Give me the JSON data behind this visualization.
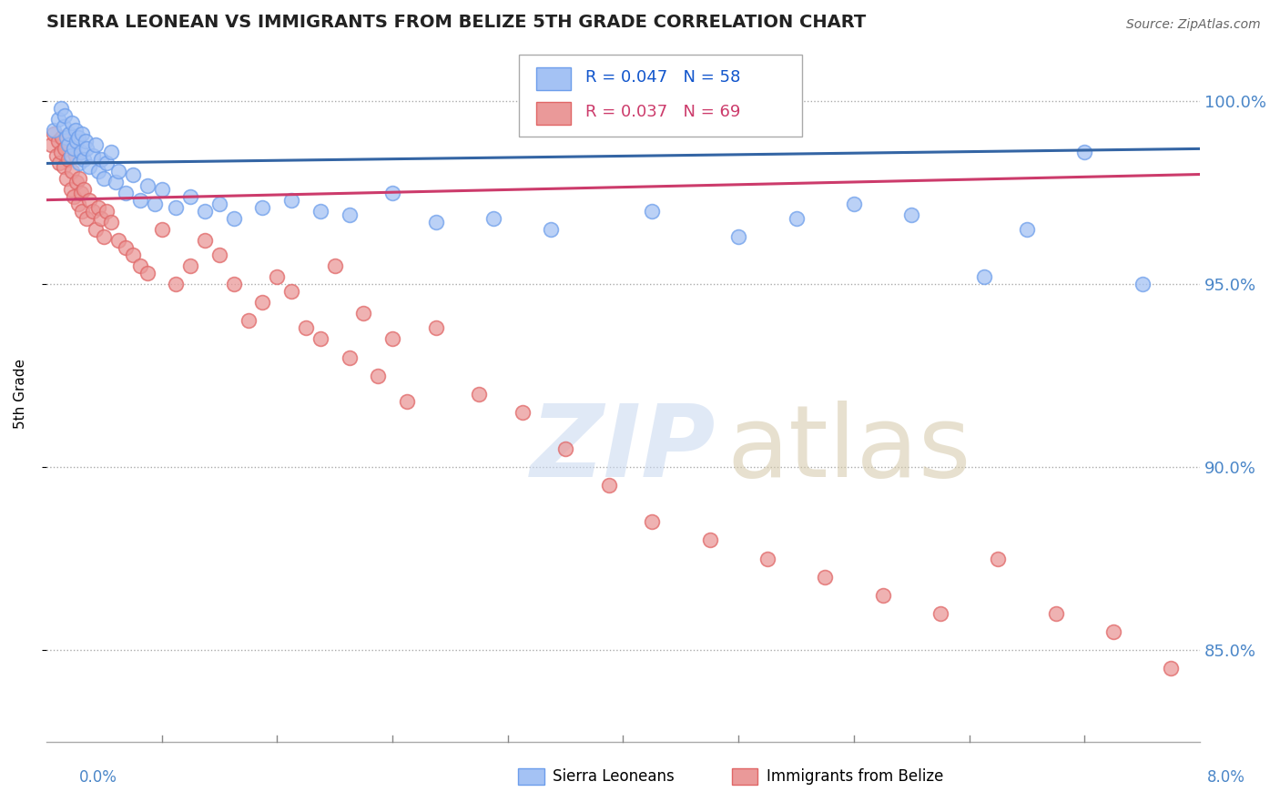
{
  "title": "SIERRA LEONEAN VS IMMIGRANTS FROM BELIZE 5TH GRADE CORRELATION CHART",
  "source": "Source: ZipAtlas.com",
  "ylabel": "5th Grade",
  "xlim": [
    0.0,
    8.0
  ],
  "ylim": [
    82.5,
    101.5
  ],
  "yticks": [
    85.0,
    90.0,
    95.0,
    100.0
  ],
  "legend_blue_r": "R = 0.047",
  "legend_blue_n": "N = 58",
  "legend_pink_r": "R = 0.037",
  "legend_pink_n": "N = 69",
  "blue_color": "#a4c2f4",
  "blue_edge_color": "#6d9eeb",
  "pink_color": "#ea9999",
  "pink_edge_color": "#e06666",
  "blue_line_color": "#3465a4",
  "pink_line_color": "#cc3b6b",
  "blue_scatter_x": [
    0.05,
    0.08,
    0.1,
    0.12,
    0.13,
    0.14,
    0.15,
    0.16,
    0.17,
    0.18,
    0.19,
    0.2,
    0.21,
    0.22,
    0.23,
    0.24,
    0.25,
    0.26,
    0.27,
    0.28,
    0.3,
    0.32,
    0.34,
    0.36,
    0.38,
    0.4,
    0.42,
    0.45,
    0.48,
    0.5,
    0.55,
    0.6,
    0.65,
    0.7,
    0.75,
    0.8,
    0.9,
    1.0,
    1.1,
    1.2,
    1.3,
    1.5,
    1.7,
    1.9,
    2.1,
    2.4,
    2.7,
    3.1,
    3.5,
    4.2,
    4.8,
    5.2,
    5.6,
    6.0,
    6.5,
    6.8,
    7.2,
    7.6
  ],
  "blue_scatter_y": [
    99.2,
    99.5,
    99.8,
    99.3,
    99.6,
    99.0,
    98.8,
    99.1,
    98.5,
    99.4,
    98.7,
    99.2,
    98.9,
    99.0,
    98.3,
    98.6,
    99.1,
    98.4,
    98.9,
    98.7,
    98.2,
    98.5,
    98.8,
    98.1,
    98.4,
    97.9,
    98.3,
    98.6,
    97.8,
    98.1,
    97.5,
    98.0,
    97.3,
    97.7,
    97.2,
    97.6,
    97.1,
    97.4,
    97.0,
    97.2,
    96.8,
    97.1,
    97.3,
    97.0,
    96.9,
    97.5,
    96.7,
    96.8,
    96.5,
    97.0,
    96.3,
    96.8,
    97.2,
    96.9,
    95.2,
    96.5,
    98.6,
    95.0
  ],
  "pink_scatter_x": [
    0.03,
    0.05,
    0.07,
    0.08,
    0.09,
    0.1,
    0.11,
    0.12,
    0.13,
    0.14,
    0.15,
    0.16,
    0.17,
    0.18,
    0.19,
    0.2,
    0.21,
    0.22,
    0.23,
    0.24,
    0.25,
    0.26,
    0.28,
    0.3,
    0.32,
    0.34,
    0.36,
    0.38,
    0.4,
    0.42,
    0.45,
    0.5,
    0.55,
    0.6,
    0.65,
    0.7,
    0.8,
    0.9,
    1.0,
    1.1,
    1.2,
    1.3,
    1.5,
    1.7,
    1.9,
    2.1,
    2.3,
    2.5,
    2.7,
    3.0,
    3.3,
    3.6,
    3.9,
    4.2,
    4.6,
    5.0,
    5.4,
    5.8,
    6.2,
    6.6,
    7.0,
    7.4,
    7.8,
    1.4,
    1.6,
    1.8,
    2.0,
    2.2,
    2.4
  ],
  "pink_scatter_y": [
    98.8,
    99.1,
    98.5,
    98.9,
    98.3,
    98.6,
    99.0,
    98.2,
    98.7,
    97.9,
    98.4,
    98.8,
    97.6,
    98.1,
    97.4,
    98.5,
    97.8,
    97.2,
    97.9,
    97.5,
    97.0,
    97.6,
    96.8,
    97.3,
    97.0,
    96.5,
    97.1,
    96.8,
    96.3,
    97.0,
    96.7,
    96.2,
    96.0,
    95.8,
    95.5,
    95.3,
    96.5,
    95.0,
    95.5,
    96.2,
    95.8,
    95.0,
    94.5,
    94.8,
    93.5,
    93.0,
    92.5,
    91.8,
    93.8,
    92.0,
    91.5,
    90.5,
    89.5,
    88.5,
    88.0,
    87.5,
    87.0,
    86.5,
    86.0,
    87.5,
    86.0,
    85.5,
    84.5,
    94.0,
    95.2,
    93.8,
    95.5,
    94.2,
    93.5
  ],
  "blue_trendline_y": [
    98.3,
    98.7
  ],
  "pink_trendline_y": [
    97.3,
    98.0
  ]
}
